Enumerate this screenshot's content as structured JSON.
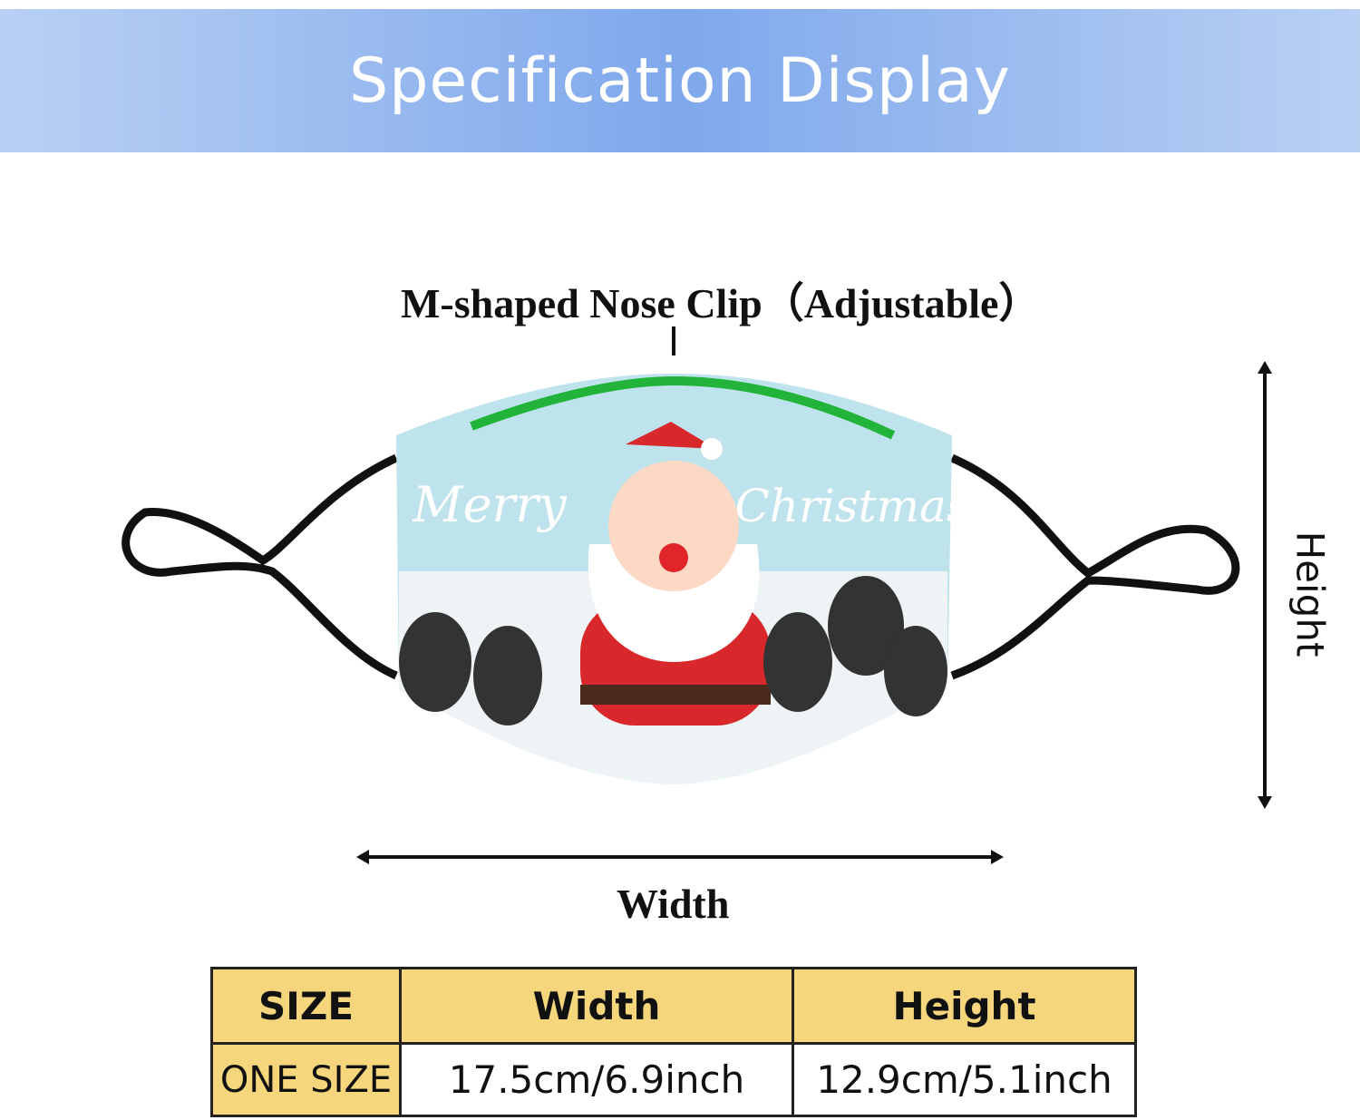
{
  "header": {
    "title": "Specification Display"
  },
  "diagram": {
    "nose_clip_label": "M-shaped Nose Clip（Adjustable）",
    "mask_text_left": "Merry",
    "mask_text_right": "Christmas",
    "width_label": "Width",
    "height_label": "Height"
  },
  "table": {
    "header": [
      "SIZE",
      "Width",
      "Height"
    ],
    "rows": [
      [
        "ONE SIZE",
        "17.5cm/6.9inch",
        "12.9cm/5.1inch"
      ]
    ]
  }
}
